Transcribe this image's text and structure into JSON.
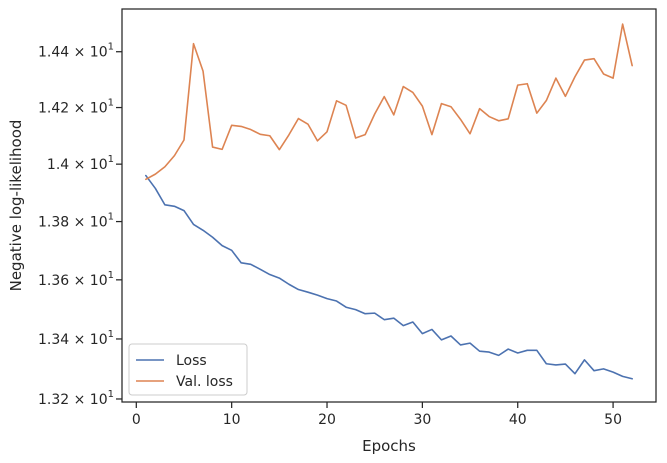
{
  "chart_data": {
    "type": "line",
    "xlabel": "Epochs",
    "ylabel": "Negative log-likelihood",
    "xlim": [
      -1.5,
      54.5
    ],
    "ylim": [
      13.19,
      14.555
    ],
    "yscale": "log",
    "grid": false,
    "legend_position": "lower-left",
    "x_ticks": [
      {
        "value": 0,
        "label": "0"
      },
      {
        "value": 10,
        "label": "10"
      },
      {
        "value": 20,
        "label": "20"
      },
      {
        "value": 30,
        "label": "30"
      },
      {
        "value": 40,
        "label": "40"
      },
      {
        "value": 50,
        "label": "50"
      }
    ],
    "y_ticks": [
      {
        "value": 13.2,
        "mantissa": "1.32",
        "base": "10",
        "exp": "1"
      },
      {
        "value": 13.4,
        "mantissa": "1.34",
        "base": "10",
        "exp": "1"
      },
      {
        "value": 13.6,
        "mantissa": "1.36",
        "base": "10",
        "exp": "1"
      },
      {
        "value": 13.8,
        "mantissa": "1.38",
        "base": "10",
        "exp": "1"
      },
      {
        "value": 14.0,
        "mantissa": "1.4",
        "base": "10",
        "exp": "1"
      },
      {
        "value": 14.2,
        "mantissa": "1.42",
        "base": "10",
        "exp": "1"
      },
      {
        "value": 14.4,
        "mantissa": "1.44",
        "base": "10",
        "exp": "1"
      }
    ],
    "x": [
      1,
      2,
      3,
      4,
      5,
      6,
      7,
      8,
      9,
      10,
      11,
      12,
      13,
      14,
      15,
      16,
      17,
      18,
      19,
      20,
      21,
      22,
      23,
      24,
      25,
      26,
      27,
      28,
      29,
      30,
      31,
      32,
      33,
      34,
      35,
      36,
      37,
      38,
      39,
      40,
      41,
      42,
      43,
      44,
      45,
      46,
      47,
      48,
      49,
      50,
      51,
      52
    ],
    "series": [
      {
        "name": "Loss",
        "color": "#4c72b0",
        "values": [
          13.96,
          13.915,
          13.858,
          13.853,
          13.838,
          13.79,
          13.77,
          13.746,
          13.717,
          13.701,
          13.658,
          13.653,
          13.636,
          13.618,
          13.606,
          13.585,
          13.567,
          13.558,
          13.548,
          13.536,
          13.528,
          13.507,
          13.499,
          13.485,
          13.487,
          13.465,
          13.47,
          13.445,
          13.457,
          13.418,
          13.432,
          13.397,
          13.41,
          13.38,
          13.386,
          13.359,
          13.356,
          13.345,
          13.366,
          13.353,
          13.362,
          13.362,
          13.317,
          13.313,
          13.316,
          13.284,
          13.33,
          13.294,
          13.3,
          13.289,
          13.275,
          13.267
        ]
      },
      {
        "name": "Val. loss",
        "color": "#dd8452",
        "values": [
          13.947,
          13.965,
          13.991,
          14.03,
          14.085,
          14.429,
          14.33,
          14.06,
          14.052,
          14.137,
          14.133,
          14.122,
          14.105,
          14.1,
          14.051,
          14.103,
          14.161,
          14.141,
          14.082,
          14.114,
          14.224,
          14.208,
          14.092,
          14.104,
          14.177,
          14.239,
          14.174,
          14.275,
          14.254,
          14.205,
          14.104,
          14.214,
          14.203,
          14.158,
          14.107,
          14.196,
          14.168,
          14.153,
          14.16,
          14.28,
          14.285,
          14.18,
          14.225,
          14.305,
          14.24,
          14.31,
          14.37,
          14.375,
          14.32,
          14.305,
          14.5,
          14.35
        ]
      }
    ]
  }
}
